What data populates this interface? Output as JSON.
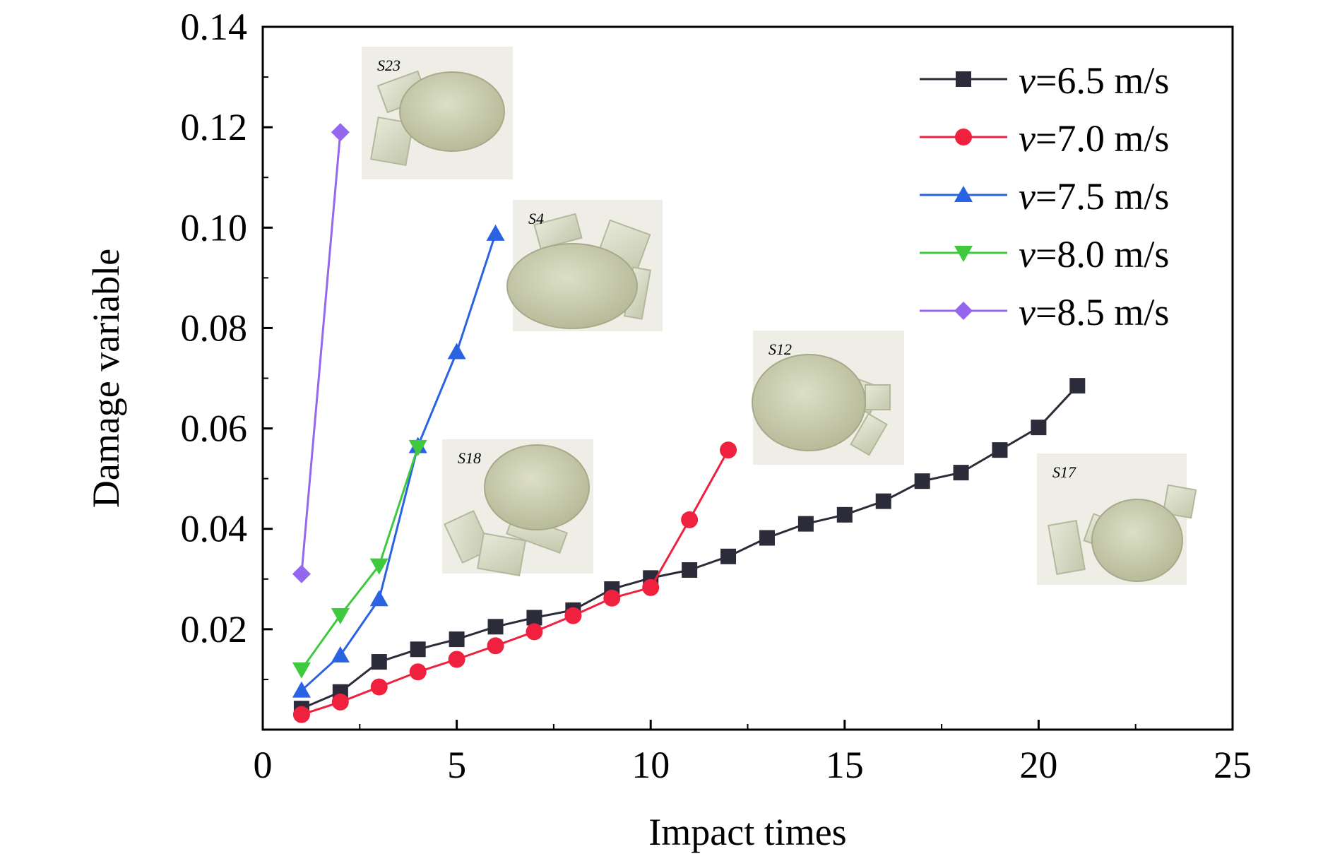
{
  "chart_data": {
    "type": "line",
    "title": "",
    "xlabel": "Impact times",
    "ylabel": "Damage variable",
    "xlim": [
      0,
      25
    ],
    "ylim": [
      0,
      0.14
    ],
    "x_ticks": [
      0,
      5,
      10,
      15,
      20,
      25
    ],
    "x_tick_labels": [
      "0",
      "5",
      "10",
      "15",
      "20",
      "25"
    ],
    "y_ticks": [
      0.02,
      0.04,
      0.06,
      0.08,
      0.1,
      0.12,
      0.14
    ],
    "y_tick_labels": [
      "0.02",
      "0.04",
      "0.06",
      "0.08",
      "0.10",
      "0.12",
      "0.14"
    ],
    "grid": false,
    "legend_position": "top-right",
    "series": [
      {
        "name": "v=6.5 m/s",
        "legend_var": "v",
        "legend_rest": "=6.5 m/s",
        "color": "#2b2b3a",
        "marker": "square",
        "x": [
          1,
          2,
          3,
          4,
          5,
          6,
          7,
          8,
          9,
          10,
          11,
          12,
          13,
          14,
          15,
          16,
          17,
          18,
          19,
          20,
          21
        ],
        "y": [
          0.0042,
          0.0075,
          0.0135,
          0.016,
          0.018,
          0.0205,
          0.0223,
          0.0238,
          0.028,
          0.0302,
          0.0318,
          0.0345,
          0.0382,
          0.041,
          0.0428,
          0.0455,
          0.0495,
          0.0512,
          0.0557,
          0.0602,
          0.0685
        ]
      },
      {
        "name": "v=7.0 m/s",
        "legend_var": "v",
        "legend_rest": "=7.0 m/s",
        "color": "#f0203f",
        "marker": "circle",
        "x": [
          1,
          2,
          3,
          4,
          5,
          6,
          7,
          8,
          9,
          10,
          11,
          12
        ],
        "y": [
          0.003,
          0.0055,
          0.0085,
          0.0115,
          0.014,
          0.0167,
          0.0195,
          0.0227,
          0.0262,
          0.0283,
          0.0418,
          0.0557
        ]
      },
      {
        "name": "v=7.5 m/s",
        "legend_var": "v",
        "legend_rest": "=7.5 m/s",
        "color": "#2a62e4",
        "marker": "triangle-up",
        "x": [
          1,
          2,
          3,
          4,
          5,
          6
        ],
        "y": [
          0.0078,
          0.0148,
          0.026,
          0.0565,
          0.0752,
          0.0988
        ]
      },
      {
        "name": "v=8.0 m/s",
        "legend_var": "v",
        "legend_rest": "=8.0 m/s",
        "color": "#3fc93f",
        "marker": "triangle-down",
        "x": [
          1,
          2,
          3,
          4
        ],
        "y": [
          0.012,
          0.0228,
          0.0327,
          0.0563
        ]
      },
      {
        "name": "v=8.5 m/s",
        "legend_var": "v",
        "legend_rest": "=8.5 m/s",
        "color": "#9566ee",
        "marker": "diamond",
        "x": [
          1,
          2
        ],
        "y": [
          0.031,
          0.119
        ]
      }
    ],
    "annotations": [
      {
        "label": "S23",
        "image": "fractured-specimen-photo"
      },
      {
        "label": "S4",
        "image": "fractured-specimen-photo"
      },
      {
        "label": "S18",
        "image": "fractured-specimen-photo"
      },
      {
        "label": "S12",
        "image": "fractured-specimen-photo"
      },
      {
        "label": "S17",
        "image": "fractured-specimen-photo"
      }
    ]
  }
}
